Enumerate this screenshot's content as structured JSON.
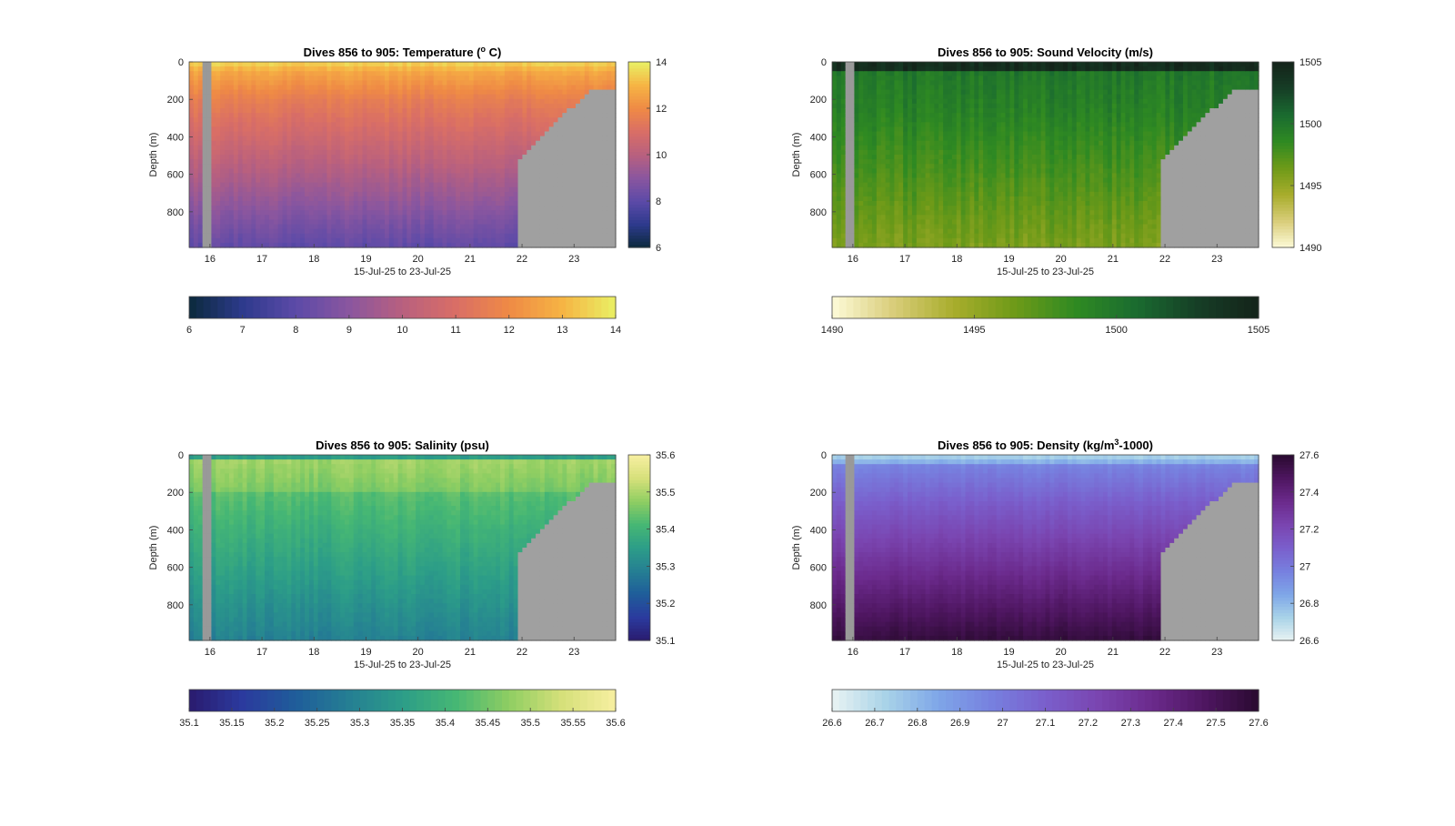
{
  "chart_data": [
    {
      "type": "heatmap",
      "title": "Dives 856 to 905: Temperature (",
      "title_sup": "o",
      "title_tail": " C)",
      "xlabel": "15-Jul-25 to 23-Jul-25",
      "ylabel": "Depth (m)",
      "x_ticks": [
        "16",
        "17",
        "18",
        "19",
        "20",
        "21",
        "22",
        "23"
      ],
      "y_ticks": [
        "0",
        "200",
        "400",
        "600",
        "800"
      ],
      "ylim": [
        0,
        990
      ],
      "clim": [
        6,
        14
      ],
      "colorbar_right_ticks": [
        "6",
        "8",
        "10",
        "12",
        "14"
      ],
      "colorbar_bottom_ticks": [
        "6",
        "7",
        "8",
        "9",
        "10",
        "11",
        "12",
        "13",
        "14"
      ],
      "colormap": [
        "#0b2a3c",
        "#2d3a8c",
        "#5c4aa8",
        "#8a569f",
        "#b8607f",
        "#d96e66",
        "#ef8a45",
        "#f6b444",
        "#e9f064"
      ],
      "description_values": {
        "surface_range": [
          12,
          14
        ],
        "at_200m": 11,
        "at_500m": 9.5,
        "at_900m": 7.5
      }
    },
    {
      "type": "heatmap",
      "title": "Dives 856 to 905: Sound Velocity (m/s)",
      "title_sup": "",
      "title_tail": "",
      "xlabel": "15-Jul-25 to 23-Jul-25",
      "ylabel": "Depth (m)",
      "x_ticks": [
        "16",
        "17",
        "18",
        "19",
        "20",
        "21",
        "22",
        "23"
      ],
      "y_ticks": [
        "0",
        "200",
        "400",
        "600",
        "800"
      ],
      "ylim": [
        0,
        990
      ],
      "clim": [
        1490,
        1505
      ],
      "colorbar_right_ticks": [
        "1490",
        "1495",
        "1500",
        "1505"
      ],
      "colorbar_bottom_ticks": [
        "1490",
        "1495",
        "1500",
        "1505"
      ],
      "colormap": [
        "#fdfbd8",
        "#d9cd7a",
        "#a8ad2c",
        "#6e9a18",
        "#2f8a22",
        "#1a6b30",
        "#163e26",
        "#14231a"
      ],
      "description_values": {
        "surface": 1504,
        "at_300m": 1499,
        "at_900m": 1496
      }
    },
    {
      "type": "heatmap",
      "title": "Dives 856 to 905: Salinity (psu)",
      "title_sup": "",
      "title_tail": "",
      "xlabel": "15-Jul-25 to 23-Jul-25",
      "ylabel": "Depth (m)",
      "x_ticks": [
        "16",
        "17",
        "18",
        "19",
        "20",
        "21",
        "22",
        "23"
      ],
      "y_ticks": [
        "0",
        "200",
        "400",
        "600",
        "800"
      ],
      "ylim": [
        0,
        990
      ],
      "clim": [
        35.1,
        35.6
      ],
      "colorbar_right_ticks": [
        "35.1",
        "35.2",
        "35.3",
        "35.4",
        "35.5",
        "35.6"
      ],
      "colorbar_bottom_ticks": [
        "35.1",
        "35.15",
        "35.2",
        "35.25",
        "35.3",
        "35.35",
        "35.4",
        "35.45",
        "35.5",
        "35.55",
        "35.6"
      ],
      "colormap": [
        "#2a1b6e",
        "#2b3a9e",
        "#1f5d9a",
        "#257f93",
        "#2c9d88",
        "#46b774",
        "#8fce62",
        "#d6e07a",
        "#f7efa1"
      ],
      "description_values": {
        "at_100m": 35.5,
        "at_400m": 35.4,
        "at_900m": 35.3
      }
    },
    {
      "type": "heatmap",
      "title": "Dives 856 to 905: Density (kg/m",
      "title_sup": "3",
      "title_tail": "-1000)",
      "xlabel": "15-Jul-25 to 23-Jul-25",
      "ylabel": "Depth (m)",
      "x_ticks": [
        "16",
        "17",
        "18",
        "19",
        "20",
        "21",
        "22",
        "23"
      ],
      "y_ticks": [
        "0",
        "200",
        "400",
        "600",
        "800"
      ],
      "ylim": [
        0,
        990
      ],
      "clim": [
        26.6,
        27.6
      ],
      "colorbar_right_ticks": [
        "26.6",
        "26.8",
        "27",
        "27.2",
        "27.4",
        "27.6"
      ],
      "colorbar_bottom_ticks": [
        "26.6",
        "26.7",
        "26.8",
        "26.9",
        "27",
        "27.1",
        "27.2",
        "27.3",
        "27.4",
        "27.5",
        "27.6"
      ],
      "colormap": [
        "#e9f3f3",
        "#a9d3e8",
        "#7ea6e8",
        "#7780df",
        "#7a5fcc",
        "#7a45b0",
        "#6b2a8c",
        "#4e1660",
        "#2a0a30"
      ],
      "description_values": {
        "surface": 26.7,
        "at_300m": 27.1,
        "at_900m": 27.5
      }
    }
  ]
}
